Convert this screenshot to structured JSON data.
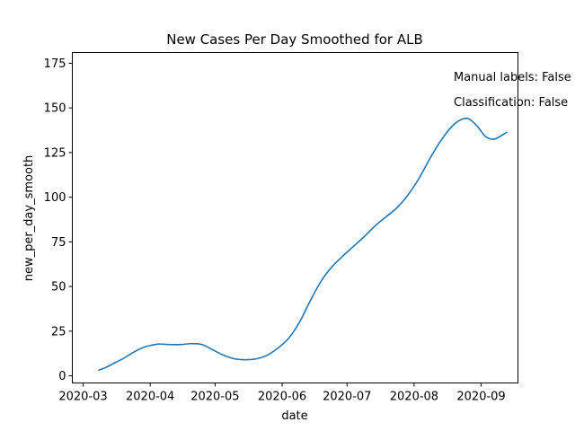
{
  "chart_data": {
    "type": "line",
    "title": "New Cases Per Day Smoothed for ALB",
    "xlabel": "date",
    "ylabel": "new_per_day_smooth",
    "x_tick_labels": [
      "2020-03",
      "2020-04",
      "2020-05",
      "2020-06",
      "2020-07",
      "2020-08",
      "2020-09"
    ],
    "x_tick_dates": [
      "2020-03-01",
      "2020-04-01",
      "2020-05-01",
      "2020-06-01",
      "2020-07-01",
      "2020-08-01",
      "2020-09-01"
    ],
    "y_ticks": [
      0,
      25,
      50,
      75,
      100,
      125,
      150,
      175
    ],
    "ylim": [
      -4,
      181
    ],
    "xlim": [
      "2020-02-25",
      "2020-09-18"
    ],
    "grid": false,
    "annotations": [
      "Manual labels: False",
      "Classification: False"
    ],
    "series": [
      {
        "color": "#1f77b4",
        "points": [
          [
            "2020-03-08",
            3
          ],
          [
            "2020-03-12",
            5
          ],
          [
            "2020-03-16",
            7.5
          ],
          [
            "2020-03-20",
            10
          ],
          [
            "2020-03-24",
            13
          ],
          [
            "2020-03-28",
            15.5
          ],
          [
            "2020-04-01",
            17
          ],
          [
            "2020-04-05",
            17.8
          ],
          [
            "2020-04-10",
            17.5
          ],
          [
            "2020-04-15",
            17.5
          ],
          [
            "2020-04-20",
            18
          ],
          [
            "2020-04-25",
            17.5
          ],
          [
            "2020-04-30",
            14.5
          ],
          [
            "2020-05-05",
            11.5
          ],
          [
            "2020-05-10",
            9.5
          ],
          [
            "2020-05-15",
            9
          ],
          [
            "2020-05-20",
            9.5
          ],
          [
            "2020-05-25",
            11.5
          ],
          [
            "2020-05-30",
            15.5
          ],
          [
            "2020-06-04",
            21
          ],
          [
            "2020-06-09",
            30
          ],
          [
            "2020-06-14",
            42
          ],
          [
            "2020-06-19",
            53
          ],
          [
            "2020-06-24",
            61
          ],
          [
            "2020-06-29",
            67
          ],
          [
            "2020-07-04",
            72.5
          ],
          [
            "2020-07-09",
            78
          ],
          [
            "2020-07-14",
            84
          ],
          [
            "2020-07-19",
            89
          ],
          [
            "2020-07-24",
            94
          ],
          [
            "2020-07-29",
            101
          ],
          [
            "2020-08-03",
            110
          ],
          [
            "2020-08-08",
            121
          ],
          [
            "2020-08-13",
            131
          ],
          [
            "2020-08-18",
            139
          ],
          [
            "2020-08-22",
            143
          ],
          [
            "2020-08-26",
            144
          ],
          [
            "2020-08-30",
            140
          ],
          [
            "2020-09-03",
            134
          ],
          [
            "2020-09-07",
            132.5
          ],
          [
            "2020-09-11",
            135
          ],
          [
            "2020-09-13",
            136.5
          ]
        ]
      }
    ]
  }
}
